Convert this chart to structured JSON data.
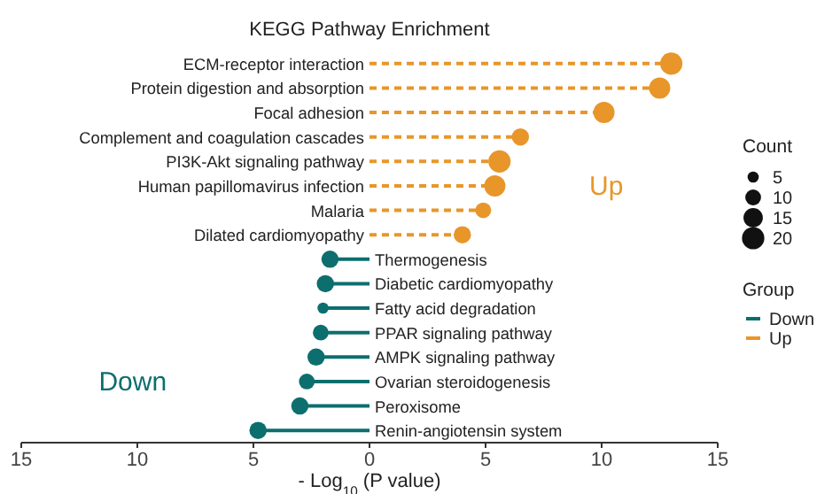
{
  "chart_data": {
    "type": "lollipop",
    "title": "KEGG Pathway Enrichment",
    "xlabel": "- Log$_{10}$ (P value)",
    "categories": [
      "ECM-receptor interaction",
      "Protein digestion and absorption",
      "Focal adhesion",
      "Complement and coagulation cascades",
      "PI3K-Akt signaling pathway",
      "Human papillomavirus infection",
      "Malaria",
      "Dilated cardiomyopathy",
      "Thermogenesis",
      "Diabetic cardiomyopathy",
      "Fatty acid degradation",
      "PPAR signaling pathway",
      "AMPK signaling pathway",
      "Ovarian steroidogenesis",
      "Peroxisome",
      "Renin-angiotensin system"
    ],
    "series": [
      {
        "name": "Down",
        "color": "#0d6e6e",
        "line_style": "solid",
        "values": [
          null,
          null,
          null,
          null,
          null,
          null,
          null,
          null,
          -1.7,
          -1.9,
          -2.0,
          -2.1,
          -2.3,
          -2.7,
          -3.0,
          -4.8
        ],
        "sizes": [
          null,
          null,
          null,
          null,
          null,
          null,
          null,
          null,
          12,
          12,
          5,
          10,
          12,
          10,
          12,
          12
        ]
      },
      {
        "name": "Up",
        "color": "#e8962a",
        "line_style": "dashed",
        "values": [
          13.0,
          12.5,
          10.1,
          6.5,
          5.6,
          5.4,
          4.9,
          4.0,
          null,
          null,
          null,
          null,
          null,
          null,
          null,
          null
        ],
        "sizes": [
          20,
          18,
          18,
          12,
          20,
          18,
          10,
          12,
          null,
          null,
          null,
          null,
          null,
          null,
          null,
          null
        ]
      }
    ],
    "size_legend": [
      5,
      10,
      15,
      20
    ],
    "legend_title": "Group",
    "annotations": [
      "Count",
      "Down",
      "Up"
    ],
    "xlim": [
      -15,
      15
    ],
    "xticks": [
      {
        "value": -15,
        "label": "15"
      },
      {
        "value": -10,
        "label": "10"
      },
      {
        "value": -5,
        "label": "5"
      },
      0,
      5,
      10,
      15
    ],
    "marker": "circle",
    "legend": "right",
    "orientation": "horizontal"
  }
}
